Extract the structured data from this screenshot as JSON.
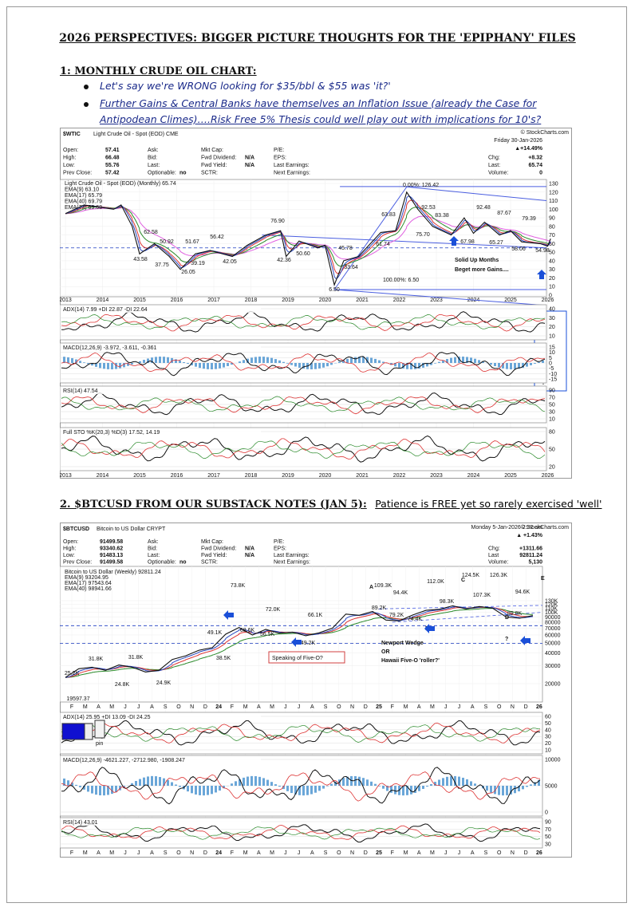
{
  "title": "2026 PERSPECTIVES: BIGGER PICTURE THOUGHTS FOR THE 'EPIPHANY' FILES",
  "section1": {
    "heading": "1: MONTHLY CRUDE OIL CHART:",
    "bullets": [
      "Let's say we're WRONG looking for $35/bbl & $55 was 'it?'",
      "Further Gains & Central Banks have themselves an Inflation Issue (already the Case for Antipodean Climes)….Risk Free 5% Thesis could well play out with implications for 10's?"
    ]
  },
  "chart1": {
    "symbol": "$WTIC",
    "description": "Light Crude Oil - Spot (EOD) CME",
    "source": "© StockCharts.com",
    "date": "Friday 30-Jan-2026",
    "change": "▲+14.49%",
    "quote": [
      [
        {
          "label": "Open:",
          "value": "57.41"
        },
        {
          "label": "High:",
          "value": "66.48"
        },
        {
          "label": "Low:",
          "value": "55.76"
        },
        {
          "label": "Prev Close:",
          "value": "57.42"
        }
      ],
      [
        {
          "label": "Ask:"
        },
        {
          "label": "Bid:"
        },
        {
          "label": "Last:"
        },
        {
          "label": "Optionable:",
          "value": "no"
        }
      ],
      [
        {
          "label": "Mkt Cap:"
        },
        {
          "label": "Fwd Dividend:",
          "value": "N/A"
        },
        {
          "label": "Fwd Yield:",
          "value": "N/A"
        },
        {
          "label": "SCTR:"
        }
      ],
      [
        {
          "label": "P/E:"
        },
        {
          "label": "EPS:"
        },
        {
          "label": "Last Earnings:"
        },
        {
          "label": "Next Earnings:"
        }
      ],
      [
        {
          "label": "Chg:",
          "value": "+8.32"
        },
        {
          "label": "Last:",
          "value": "65.74"
        },
        {
          "label": "Volume:",
          "value": "0"
        }
      ]
    ],
    "legend": [
      "Light Crude Oil - Spot (EOD) (Monthly) 65.74",
      "EMA(9) 63.10",
      "EMA(17) 65.79",
      "EMA(40) 69.79",
      "EMA(73) 69.63"
    ],
    "price_ticks": [
      130,
      120,
      110,
      100,
      90,
      80,
      70,
      60,
      50,
      40,
      30,
      20,
      10,
      0
    ],
    "years": [
      "2013",
      "2014",
      "2015",
      "2016",
      "2017",
      "2018",
      "2019",
      "2020",
      "2021",
      "2022",
      "2023",
      "2024",
      "2025",
      "2026"
    ],
    "price_labels": [
      "92.53",
      "92.48",
      "83.38",
      "87.67",
      "79.39",
      "76.90",
      "63.83",
      "62.58",
      "50.92",
      "51.67",
      "56.42",
      "43.58",
      "37.75",
      "39.19",
      "42.05",
      "26.05",
      "42.36",
      "50.60",
      "45.78",
      "33.64",
      "6.50",
      "75.70",
      "67.98",
      "65.27",
      "58.06",
      "54.98",
      "61.74"
    ],
    "annotations": [
      "0.00%: 126.42",
      "100.00%: 6.50",
      "Solid Up Months",
      "Beget more Gains....",
      "?",
      "?"
    ],
    "panels": [
      {
        "label": "ADX(14) 7.99 +DI 22.87 -DI 22.64",
        "ticks": [
          40,
          30,
          20,
          10
        ]
      },
      {
        "label": "MACD(12,26,9) -3.972, -3.611, -0.361",
        "ticks": [
          15,
          10,
          5,
          0,
          -5,
          -10,
          -15
        ]
      },
      {
        "label": "RSI(14) 47.54",
        "ticks": [
          90,
          70,
          50,
          30,
          10
        ]
      },
      {
        "label": "Full STO %K(20,3) %D(3) 17.52, 14.19",
        "ticks": [
          80,
          50,
          20
        ]
      }
    ]
  },
  "section2": {
    "heading": "2. $BTCUSD FROM OUR SUBSTACK NOTES (JAN 5):",
    "subheading": "Patience is FREE yet so rarely exercised 'well'"
  },
  "chart2": {
    "symbol": "$BTCUSD",
    "description": "Bitcoin to US Dollar CRYPT",
    "source": "© StockCharts.com",
    "date": "Monday 5-Jan-2026 2:32 am",
    "change": "▲ +1.43%",
    "quote": [
      [
        {
          "label": "Open:",
          "value": "91499.58"
        },
        {
          "label": "High:",
          "value": "93340.62"
        },
        {
          "label": "Low:",
          "value": "91483.13"
        },
        {
          "label": "Prev Close:",
          "value": "91499.58"
        }
      ],
      [
        {
          "label": "Ask:"
        },
        {
          "label": "Bid:"
        },
        {
          "label": "Last:"
        },
        {
          "label": "Optionable:",
          "value": "no"
        }
      ],
      [
        {
          "label": "Mkt Cap:"
        },
        {
          "label": "Fwd Dividend:",
          "value": "N/A"
        },
        {
          "label": "Fwd Yield:",
          "value": "N/A"
        },
        {
          "label": "SCTR:"
        }
      ],
      [
        {
          "label": "P/E:"
        },
        {
          "label": "EPS:"
        },
        {
          "label": "Last Earnings:"
        },
        {
          "label": "Next Earnings:"
        }
      ],
      [
        {
          "label": "Chg:",
          "value": "+1311.66"
        },
        {
          "label": "Last",
          "value": "92811.24"
        },
        {
          "label": "Volume:",
          "value": "5,130"
        }
      ]
    ],
    "legend": [
      "Bitcoin to US Dollar (Weekly) 92811.24",
      "EMA(9) 93204.95",
      "EMA(17) 97543.64",
      "EMA(40) 98941.66"
    ],
    "price_ticks": [
      {
        "value": 130000,
        "label": "130K"
      },
      {
        "value": 120000,
        "label": "120K"
      },
      {
        "value": 110000,
        "label": "110K"
      },
      {
        "value": 100000,
        "label": "100K"
      },
      90000,
      80000,
      70000,
      60000,
      50000,
      40000,
      30000,
      20000
    ],
    "months": [
      "F",
      "M",
      "A",
      "M",
      "J",
      "J",
      "A",
      "S",
      "O",
      "N",
      "D",
      "24",
      "F",
      "M",
      "A",
      "M",
      "J",
      "J",
      "A",
      "S",
      "O",
      "N",
      "D",
      "25",
      "F",
      "M",
      "A",
      "M",
      "J",
      "J",
      "A",
      "S",
      "O",
      "N",
      "D",
      "26"
    ],
    "price_labels": [
      "109.3K",
      "94.4K",
      "112.0K",
      "124.5K",
      "126.3K",
      "107.3K",
      "94.6K",
      "89.2K",
      "98.3K",
      "79.2K",
      "74.4K",
      "89.8K",
      "73.8K",
      "72.0K",
      "68.6K",
      "56.5K",
      "66.1K",
      "49.2K",
      "49.1K",
      "38.5K",
      "31.8K",
      "31.8K",
      "25.2K",
      "24.8K",
      "24.9K",
      "19597.37"
    ],
    "annotations": [
      "Speaking of Five-O?",
      "Newport Wedge",
      "OR",
      "Hawaii Five-O 'roller?'",
      "A",
      "B",
      "C",
      "D",
      "E",
      "?"
    ],
    "pin": "pin",
    "panels": [
      {
        "label": "ADX(14) 25.95 +DI 13.09 -DI 24.25",
        "ticks": [
          60,
          50,
          40,
          30,
          20,
          10
        ]
      },
      {
        "label": "MACD(12,26,9) -4621.227, -2712.980, -1908.247",
        "ticks": [
          10000,
          5000,
          0
        ]
      },
      {
        "label": "RSI(14) 43.01",
        "ticks": [
          90,
          70,
          50,
          30
        ]
      }
    ]
  }
}
